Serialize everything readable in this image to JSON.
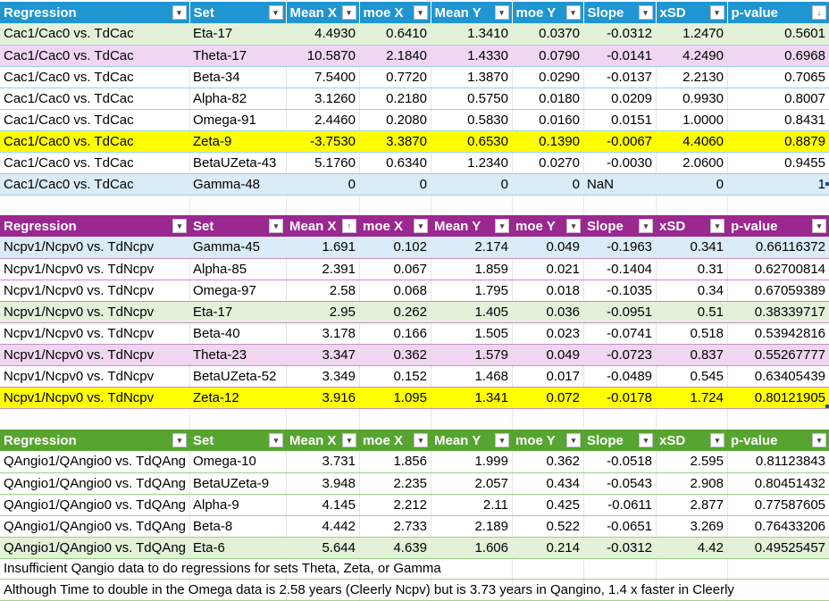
{
  "headers": {
    "regression": "Regression",
    "set": "Set",
    "mean_x": "Mean X",
    "moe_x": "moe X",
    "mean_y": "Mean Y",
    "moe_y": "moe Y",
    "slope": "Slope",
    "xsd": "xSD",
    "p_value": "p-value"
  },
  "filter_icons": {
    "default": "▾",
    "sorted_desc": "↓",
    "sorted_asc": "↑"
  },
  "colors": {
    "table1_header": "#1f95d2",
    "table2_header": "#9b2790",
    "table3_header": "#56a530",
    "highlight_green": "#e3f1d9",
    "highlight_pink": "#f0d6f0",
    "highlight_yellow": "#ffff00",
    "highlight_blue": "#d9ecf7"
  },
  "table1": {
    "rows": [
      [
        "Cac1/Cac0 vs. TdCac",
        "Eta-17",
        "4.4930",
        "0.6410",
        "1.3410",
        "0.0370",
        "-0.0312",
        "1.2470",
        "0.5601"
      ],
      [
        "Cac1/Cac0 vs. TdCac",
        "Theta-17",
        "10.5870",
        "2.1840",
        "1.4330",
        "0.0790",
        "-0.0141",
        "4.2490",
        "0.6968"
      ],
      [
        "Cac1/Cac0 vs. TdCac",
        "Beta-34",
        "7.5400",
        "0.7720",
        "1.3870",
        "0.0290",
        "-0.0137",
        "2.2130",
        "0.7065"
      ],
      [
        "Cac1/Cac0 vs. TdCac",
        "Alpha-82",
        "3.1260",
        "0.2180",
        "0.5750",
        "0.0180",
        "0.0209",
        "0.9930",
        "0.8007"
      ],
      [
        "Cac1/Cac0 vs. TdCac",
        "Omega-91",
        "2.4460",
        "0.2080",
        "0.5830",
        "0.0160",
        "0.0151",
        "1.0000",
        "0.8431"
      ],
      [
        "Cac1/Cac0 vs. TdCac",
        "Zeta-9",
        "-3.7530",
        "3.3870",
        "0.6530",
        "0.1390",
        "-0.0067",
        "4.4060",
        "0.8879"
      ],
      [
        "Cac1/Cac0 vs. TdCac",
        "BetaUZeta-43",
        "5.1760",
        "0.6340",
        "1.2340",
        "0.0270",
        "-0.0030",
        "2.0600",
        "0.9455"
      ],
      [
        "Cac1/Cac0 vs. TdCac",
        "Gamma-48",
        "0",
        "0",
        "0",
        "0",
        "NaN",
        "0",
        "1"
      ]
    ]
  },
  "table2": {
    "rows": [
      [
        "Ncpv1/Ncpv0 vs. TdNcpv",
        "Gamma-45",
        "1.691",
        "0.102",
        "2.174",
        "0.049",
        "-0.1963",
        "0.341",
        "0.66116372"
      ],
      [
        "Ncpv1/Ncpv0 vs. TdNcpv",
        "Alpha-85",
        "2.391",
        "0.067",
        "1.859",
        "0.021",
        "-0.1404",
        "0.31",
        "0.62700814"
      ],
      [
        "Ncpv1/Ncpv0 vs. TdNcpv",
        "Omega-97",
        "2.58",
        "0.068",
        "1.795",
        "0.018",
        "-0.1035",
        "0.34",
        "0.67059389"
      ],
      [
        "Ncpv1/Ncpv0 vs. TdNcpv",
        "Eta-17",
        "2.95",
        "0.262",
        "1.405",
        "0.036",
        "-0.0951",
        "0.51",
        "0.38339717"
      ],
      [
        "Ncpv1/Ncpv0 vs. TdNcpv",
        "Beta-40",
        "3.178",
        "0.166",
        "1.505",
        "0.023",
        "-0.0741",
        "0.518",
        "0.53942816"
      ],
      [
        "Ncpv1/Ncpv0 vs. TdNcpv",
        "Theta-23",
        "3.347",
        "0.362",
        "1.579",
        "0.049",
        "-0.0723",
        "0.837",
        "0.55267777"
      ],
      [
        "Ncpv1/Ncpv0 vs. TdNcpv",
        "BetaUZeta-52",
        "3.349",
        "0.152",
        "1.468",
        "0.017",
        "-0.0489",
        "0.545",
        "0.63405439"
      ],
      [
        "Ncpv1/Ncpv0 vs. TdNcpv",
        "Zeta-12",
        "3.916",
        "1.095",
        "1.341",
        "0.072",
        "-0.0178",
        "1.724",
        "0.80121905"
      ]
    ]
  },
  "table3": {
    "rows": [
      [
        "QAngio1/QAngio0 vs. TdQAng",
        "Omega-10",
        "3.731",
        "1.856",
        "1.999",
        "0.362",
        "-0.0518",
        "2.595",
        "0.81123843"
      ],
      [
        "QAngio1/QAngio0 vs. TdQAng",
        "BetaUZeta-9",
        "3.948",
        "2.235",
        "2.057",
        "0.434",
        "-0.0543",
        "2.908",
        "0.80451432"
      ],
      [
        "QAngio1/QAngio0 vs. TdQAng",
        "Alpha-9",
        "4.145",
        "2.212",
        "2.11",
        "0.425",
        "-0.0611",
        "2.877",
        "0.77587605"
      ],
      [
        "QAngio1/QAngio0 vs. TdQAng",
        "Beta-8",
        "4.442",
        "2.733",
        "2.189",
        "0.522",
        "-0.0651",
        "3.269",
        "0.76433206"
      ],
      [
        "QAngio1/QAngio0 vs. TdQAng",
        "Eta-6",
        "5.644",
        "4.639",
        "1.606",
        "0.214",
        "-0.0312",
        "4.42",
        "0.49525457"
      ]
    ]
  },
  "notes": [
    "Insufficient Qangio data to do regressions for sets Theta, Zeta, or Gamma",
    "Although Time to double in the Omega data is 2.58 years  (Cleerly Ncpv) but is 3.73 years in Qangino, 1.4 x faster  in Cleerly"
  ]
}
